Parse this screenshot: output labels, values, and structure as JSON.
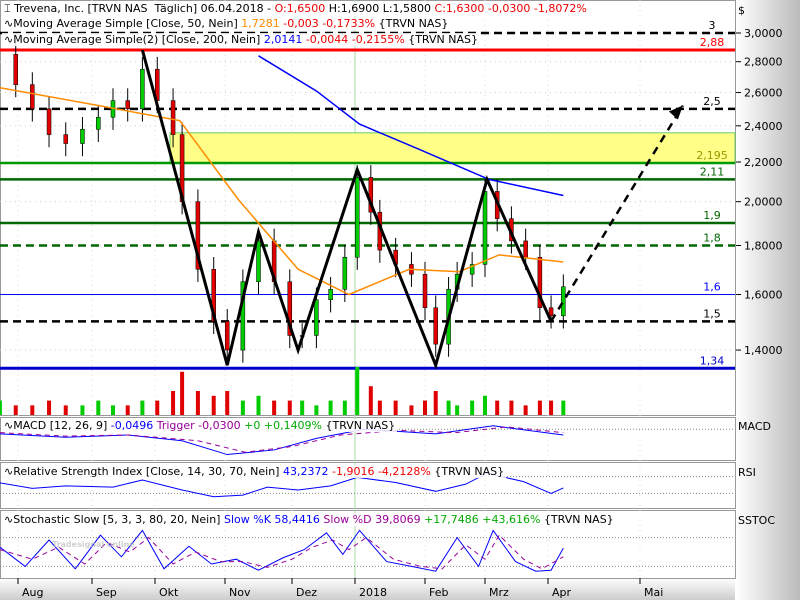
{
  "header": {
    "title": "Trevena, Inc. [TRVN NAS  Täglich] 06.04.2018 -",
    "open": "O:1,6500",
    "high": "H:1,6900",
    "low": "L:1,5800",
    "close": "C:1,6300 -0,0300 -1,8072%"
  },
  "ma50": {
    "label": "Moving Average Simple [Close, 50, Nein]",
    "value": "1,7281",
    "change": "-0,003 -0,1733%",
    "symbol": "{TRVN NAS}"
  },
  "ma200": {
    "label": "Moving Average Simple(2) [Close, 200, Nein]",
    "value": "2,0141",
    "change": "-0,0044 -0,2155%",
    "symbol": "{TRVN NAS}"
  },
  "macd": {
    "label": "MACD [12, 26, 9]",
    "value": "-0,0496",
    "trigger": "Trigger -0,0300",
    "change": "+0 +0,1409%",
    "symbol": "{TRVN NAS}",
    "side": "MACD"
  },
  "rsi": {
    "label": "Relative Strength Index [Close, 14, 30, 70, Nein]",
    "value": "43,2372",
    "change": "-1,9016 -4,2128%",
    "symbol": "{TRVN NAS}",
    "side": "RSI"
  },
  "stoch": {
    "label": "Stochastic Slow [5, 3, 3, 80, 20, Nein]",
    "k": "Slow %K 58,4416",
    "d": "Slow %D 39,8069",
    "change": "+17,7486 +43,616%",
    "symbol": "{TRVN NAS}",
    "side": "SSTOC"
  },
  "currency": "$",
  "watermark": "Tradesignal online",
  "colors": {
    "up": "#00cc00",
    "down": "#e00000",
    "ma50": "#ff8c00",
    "ma200": "#0000ff"
  },
  "chart_data": {
    "type": "line",
    "scale": "log",
    "ylim": [
      1.25,
      3.1
    ],
    "yticks": [
      "3,0000",
      "2,8000",
      "2,6000",
      "2,4000",
      "2,2000",
      "2,0000",
      "1,8000",
      "1,6000",
      "1,4000"
    ],
    "ytick_values": [
      3.0,
      2.8,
      2.6,
      2.4,
      2.2,
      2.0,
      1.8,
      1.6,
      1.4
    ],
    "xticks": [
      "Aug",
      "Sep",
      "Okt",
      "Nov",
      "Dez",
      "2018",
      "Feb",
      "Mrz",
      "Apr",
      "Mai"
    ],
    "price": [
      [
        "2017-07-24",
        2.85
      ],
      [
        "2017-07-31",
        2.65
      ],
      [
        "2017-08-07",
        2.5
      ],
      [
        "2017-08-14",
        2.35
      ],
      [
        "2017-08-21",
        2.3
      ],
      [
        "2017-08-28",
        2.38
      ],
      [
        "2017-09-04",
        2.45
      ],
      [
        "2017-09-11",
        2.55
      ],
      [
        "2017-09-18",
        2.5
      ],
      [
        "2017-09-25",
        2.75
      ],
      [
        "2017-10-02",
        2.55
      ],
      [
        "2017-10-09",
        2.35
      ],
      [
        "2017-10-13",
        2.0
      ],
      [
        "2017-10-20",
        1.7
      ],
      [
        "2017-10-27",
        1.5
      ],
      [
        "2017-11-02",
        1.4
      ],
      [
        "2017-11-09",
        1.65
      ],
      [
        "2017-11-16",
        1.82
      ],
      [
        "2017-11-23",
        1.65
      ],
      [
        "2017-11-30",
        1.45
      ],
      [
        "2017-12-06",
        1.45
      ],
      [
        "2017-12-13",
        1.58
      ],
      [
        "2017-12-20",
        1.62
      ],
      [
        "2017-12-27",
        1.75
      ],
      [
        "2018-01-02",
        2.12
      ],
      [
        "2018-01-08",
        1.95
      ],
      [
        "2018-01-12",
        1.78
      ],
      [
        "2018-01-19",
        1.72
      ],
      [
        "2018-01-26",
        1.68
      ],
      [
        "2018-02-01",
        1.55
      ],
      [
        "2018-02-06",
        1.42
      ],
      [
        "2018-02-12",
        1.62
      ],
      [
        "2018-02-16",
        1.68
      ],
      [
        "2018-02-23",
        1.72
      ],
      [
        "2018-03-01",
        2.05
      ],
      [
        "2018-03-07",
        1.92
      ],
      [
        "2018-03-14",
        1.82
      ],
      [
        "2018-03-21",
        1.75
      ],
      [
        "2018-03-28",
        1.55
      ],
      [
        "2018-04-02",
        1.52
      ],
      [
        "2018-04-06",
        1.63
      ]
    ],
    "ma50_series": [
      [
        "2017-07-24",
        2.63
      ],
      [
        "2017-09-04",
        2.52
      ],
      [
        "2017-10-12",
        2.43
      ],
      [
        "2017-11-07",
        2.01
      ],
      [
        "2017-12-04",
        1.7
      ],
      [
        "2017-12-29",
        1.6
      ],
      [
        "2018-01-25",
        1.7
      ],
      [
        "2018-02-17",
        1.69
      ],
      [
        "2018-03-08",
        1.76
      ],
      [
        "2018-04-06",
        1.73
      ]
    ],
    "ma200_series": [
      [
        "2017-11-16",
        2.84
      ],
      [
        "2017-12-13",
        2.61
      ],
      [
        "2018-01-03",
        2.41
      ],
      [
        "2018-01-29",
        2.27
      ],
      [
        "2018-03-03",
        2.11
      ],
      [
        "2018-04-06",
        2.03
      ]
    ],
    "volume": [
      3,
      2,
      2,
      3,
      2,
      2,
      3,
      2,
      2,
      3,
      3,
      5,
      9,
      5,
      4,
      5,
      3,
      4,
      3,
      3,
      3,
      2,
      3,
      3,
      10,
      6,
      3,
      3,
      2,
      3,
      5,
      3,
      2,
      3,
      4,
      3,
      3,
      2,
      3,
      3,
      3
    ],
    "levels": [
      {
        "value": 3,
        "label": "3",
        "style": "dashed",
        "color": "#000"
      },
      {
        "value": 2.88,
        "label": "2,88",
        "style": "solid",
        "color": "#ff0000"
      },
      {
        "value": 2.5,
        "label": "2,5",
        "style": "dashed",
        "color": "#000"
      },
      {
        "value": 2.195,
        "label": "2,195",
        "style": "solid",
        "color": "#009900"
      },
      {
        "value": 2.11,
        "label": "2,11",
        "style": "solid",
        "color": "#006600"
      },
      {
        "value": 1.9,
        "label": "1,9",
        "style": "solid",
        "color": "#006600"
      },
      {
        "value": 1.8,
        "label": "1,8",
        "style": "dashed",
        "color": "#006600"
      },
      {
        "value": 1.6,
        "label": "1,6",
        "style": "thin",
        "color": "#0000ff"
      },
      {
        "value": 1.5,
        "label": "1,5",
        "style": "dashed",
        "color": "#000"
      },
      {
        "value": 1.34,
        "label": "1,34",
        "style": "thick",
        "color": "#0000cc"
      }
    ],
    "zone": {
      "from": 2.195,
      "to": 2.36,
      "color": "#ffff88"
    },
    "pattern": [
      [
        "2017-09-25",
        2.88
      ],
      [
        "2017-11-02",
        1.35
      ],
      [
        "2017-11-16",
        1.86
      ],
      [
        "2017-12-04",
        1.4
      ],
      [
        "2018-01-02",
        2.16
      ],
      [
        "2018-02-06",
        1.35
      ],
      [
        "2018-03-02",
        2.11
      ],
      [
        "2018-04-02",
        1.5
      ]
    ],
    "projection": [
      [
        "2018-04-02",
        1.5
      ],
      [
        "2018-05-15",
        2.52
      ]
    ],
    "macd_series": [
      [
        "2017-07-24",
        -0.04
      ],
      [
        "2017-08-21",
        -0.07
      ],
      [
        "2017-09-18",
        -0.05
      ],
      [
        "2017-10-13",
        -0.1
      ],
      [
        "2017-11-02",
        -0.22
      ],
      [
        "2017-11-23",
        -0.18
      ],
      [
        "2017-12-13",
        -0.08
      ],
      [
        "2018-01-05",
        0.0
      ],
      [
        "2018-02-06",
        -0.04
      ],
      [
        "2018-03-05",
        0.03
      ],
      [
        "2018-04-06",
        -0.05
      ]
    ],
    "macd_trigger": [
      [
        "2017-07-24",
        -0.03
      ],
      [
        "2017-08-21",
        -0.06
      ],
      [
        "2017-09-18",
        -0.05
      ],
      [
        "2017-10-20",
        -0.1
      ],
      [
        "2017-11-10",
        -0.2
      ],
      [
        "2017-12-01",
        -0.15
      ],
      [
        "2017-12-25",
        -0.05
      ],
      [
        "2018-01-20",
        -0.01
      ],
      [
        "2018-02-15",
        -0.03
      ],
      [
        "2018-03-12",
        0.02
      ],
      [
        "2018-04-06",
        -0.03
      ]
    ],
    "rsi_series": [
      [
        "2017-07-24",
        55
      ],
      [
        "2017-08-07",
        42
      ],
      [
        "2017-08-21",
        48
      ],
      [
        "2017-09-11",
        45
      ],
      [
        "2017-09-25",
        62
      ],
      [
        "2017-10-13",
        38
      ],
      [
        "2017-10-27",
        22
      ],
      [
        "2017-11-09",
        26
      ],
      [
        "2017-11-20",
        45
      ],
      [
        "2017-12-04",
        38
      ],
      [
        "2017-12-20",
        48
      ],
      [
        "2018-01-02",
        68
      ],
      [
        "2018-01-19",
        56
      ],
      [
        "2018-02-06",
        35
      ],
      [
        "2018-02-20",
        52
      ],
      [
        "2018-03-02",
        78
      ],
      [
        "2018-03-20",
        58
      ],
      [
        "2018-04-02",
        30
      ],
      [
        "2018-04-06",
        43
      ]
    ],
    "stoch_k": [
      [
        "2017-07-24",
        60
      ],
      [
        "2017-08-04",
        20
      ],
      [
        "2017-08-14",
        75
      ],
      [
        "2017-08-25",
        15
      ],
      [
        "2017-09-05",
        85
      ],
      [
        "2017-09-15",
        40
      ],
      [
        "2017-09-25",
        95
      ],
      [
        "2017-10-05",
        15
      ],
      [
        "2017-10-16",
        62
      ],
      [
        "2017-10-26",
        25
      ],
      [
        "2017-11-06",
        35
      ],
      [
        "2017-11-16",
        12
      ],
      [
        "2017-11-27",
        38
      ],
      [
        "2017-12-07",
        55
      ],
      [
        "2017-12-18",
        90
      ],
      [
        "2017-12-26",
        45
      ],
      [
        "2018-01-03",
        95
      ],
      [
        "2018-01-15",
        30
      ],
      [
        "2018-01-26",
        20
      ],
      [
        "2018-02-06",
        10
      ],
      [
        "2018-02-16",
        80
      ],
      [
        "2018-02-26",
        20
      ],
      [
        "2018-03-05",
        95
      ],
      [
        "2018-03-16",
        30
      ],
      [
        "2018-03-26",
        10
      ],
      [
        "2018-04-02",
        12
      ],
      [
        "2018-04-06",
        58
      ]
    ],
    "stoch_d": [
      [
        "2017-07-24",
        55
      ],
      [
        "2017-08-07",
        35
      ],
      [
        "2017-08-18",
        60
      ],
      [
        "2017-08-29",
        25
      ],
      [
        "2017-09-08",
        70
      ],
      [
        "2017-09-19",
        50
      ],
      [
        "2017-09-28",
        80
      ],
      [
        "2017-10-09",
        25
      ],
      [
        "2017-10-19",
        50
      ],
      [
        "2017-10-30",
        30
      ],
      [
        "2017-11-09",
        30
      ],
      [
        "2017-11-20",
        18
      ],
      [
        "2017-12-01",
        35
      ],
      [
        "2017-12-11",
        60
      ],
      [
        "2017-12-21",
        75
      ],
      [
        "2017-12-29",
        55
      ],
      [
        "2018-01-06",
        80
      ],
      [
        "2018-01-18",
        35
      ],
      [
        "2018-01-30",
        20
      ],
      [
        "2018-02-09",
        15
      ],
      [
        "2018-02-20",
        65
      ],
      [
        "2018-03-01",
        35
      ],
      [
        "2018-03-08",
        85
      ],
      [
        "2018-03-20",
        35
      ],
      [
        "2018-03-29",
        15
      ],
      [
        "2018-04-06",
        40
      ]
    ]
  }
}
